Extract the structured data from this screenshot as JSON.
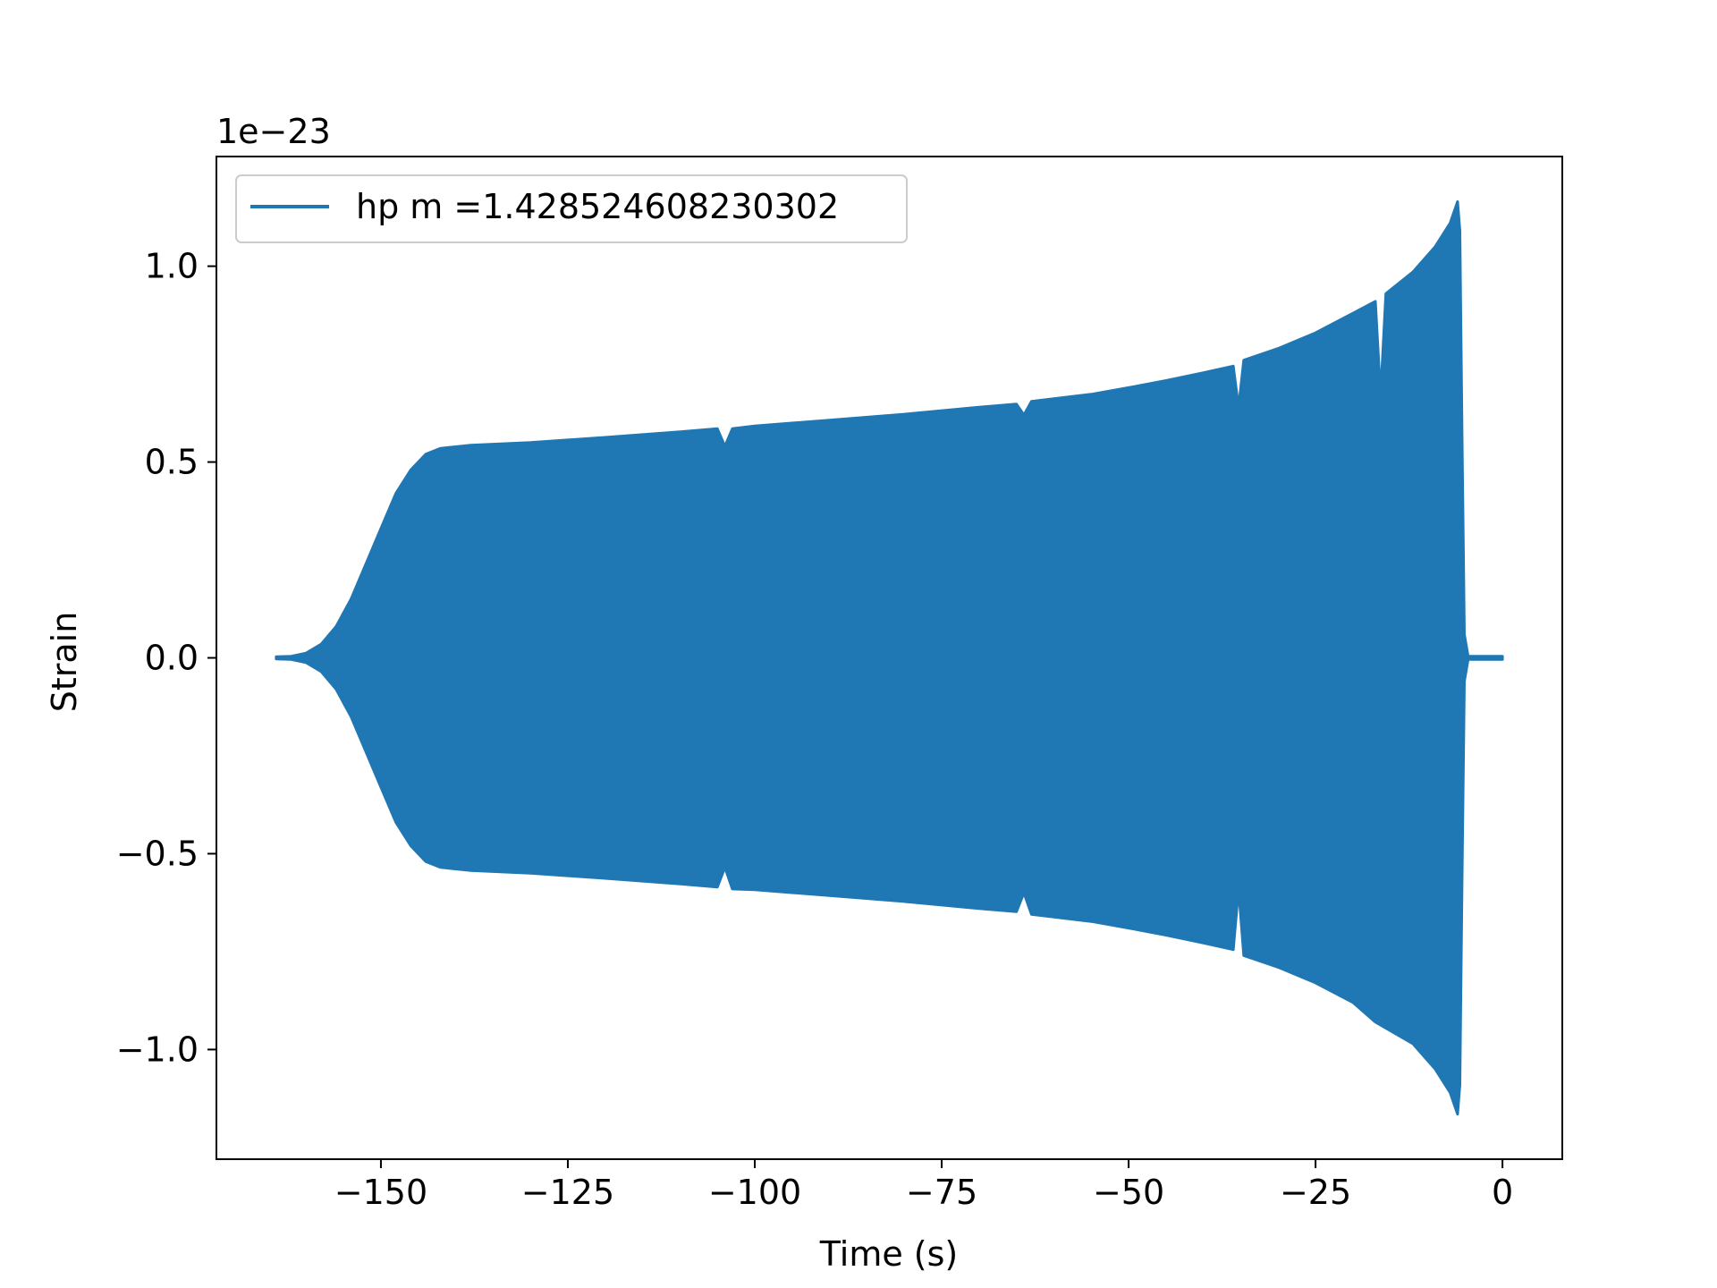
{
  "chart_data": {
    "type": "line",
    "title": "",
    "xlabel": "Time (s)",
    "ylabel": "Strain",
    "y_offset_label": "1e−23",
    "xlim": [
      -172,
      8
    ],
    "ylim": [
      -1.28,
      1.28
    ],
    "x_ticks": [
      {
        "value": -150,
        "label": "−150"
      },
      {
        "value": -125,
        "label": "−125"
      },
      {
        "value": -100,
        "label": "−100"
      },
      {
        "value": -75,
        "label": "−75"
      },
      {
        "value": -50,
        "label": "−50"
      },
      {
        "value": -25,
        "label": "−25"
      },
      {
        "value": 0,
        "label": "0"
      }
    ],
    "y_ticks": [
      {
        "value": 1.0,
        "label": "1.0"
      },
      {
        "value": 0.5,
        "label": "0.5"
      },
      {
        "value": 0.0,
        "label": "0.0"
      },
      {
        "value": -0.5,
        "label": "−0.5"
      },
      {
        "value": -1.0,
        "label": "−1.0"
      }
    ],
    "grid": false,
    "legend_position": "top-left",
    "series": [
      {
        "name": "hp m =1.428524608230302",
        "color": "#1f77b4",
        "envelope_upper": [
          [
            -164,
            0.003
          ],
          [
            -162,
            0.004
          ],
          [
            -160,
            0.012
          ],
          [
            -158,
            0.035
          ],
          [
            -156,
            0.08
          ],
          [
            -154,
            0.15
          ],
          [
            -152,
            0.24
          ],
          [
            -150,
            0.33
          ],
          [
            -148,
            0.42
          ],
          [
            -146,
            0.48
          ],
          [
            -144,
            0.52
          ],
          [
            -142,
            0.535
          ],
          [
            -138,
            0.543
          ],
          [
            -130,
            0.55
          ],
          [
            -120,
            0.563
          ],
          [
            -110,
            0.577
          ],
          [
            -105,
            0.585
          ],
          [
            -104,
            0.54
          ],
          [
            -103,
            0.585
          ],
          [
            -100,
            0.592
          ],
          [
            -90,
            0.607
          ],
          [
            -80,
            0.622
          ],
          [
            -70,
            0.64
          ],
          [
            -65,
            0.648
          ],
          [
            -64,
            0.62
          ],
          [
            -63,
            0.655
          ],
          [
            -55,
            0.673
          ],
          [
            -50,
            0.69
          ],
          [
            -45,
            0.708
          ],
          [
            -40,
            0.728
          ],
          [
            -36,
            0.745
          ],
          [
            -35.3,
            0.64
          ],
          [
            -34.6,
            0.76
          ],
          [
            -30,
            0.79
          ],
          [
            -25,
            0.83
          ],
          [
            -20,
            0.88
          ],
          [
            -17,
            0.91
          ],
          [
            -16.3,
            0.67
          ],
          [
            -15.6,
            0.93
          ],
          [
            -12,
            0.985
          ],
          [
            -9,
            1.05
          ],
          [
            -7,
            1.11
          ],
          [
            -6,
            1.165
          ],
          [
            -5.7,
            1.09
          ],
          [
            -5.4,
            0.55
          ],
          [
            -5.1,
            0.06
          ],
          [
            -4.6,
            0.004
          ],
          [
            0,
            0.004
          ]
        ],
        "envelope_lower": [
          [
            -164,
            -0.003
          ],
          [
            -162,
            -0.004
          ],
          [
            -160,
            -0.012
          ],
          [
            -158,
            -0.035
          ],
          [
            -156,
            -0.08
          ],
          [
            -154,
            -0.15
          ],
          [
            -152,
            -0.24
          ],
          [
            -150,
            -0.33
          ],
          [
            -148,
            -0.42
          ],
          [
            -146,
            -0.48
          ],
          [
            -144,
            -0.52
          ],
          [
            -142,
            -0.535
          ],
          [
            -138,
            -0.543
          ],
          [
            -130,
            -0.55
          ],
          [
            -120,
            -0.563
          ],
          [
            -110,
            -0.577
          ],
          [
            -105,
            -0.585
          ],
          [
            -104,
            -0.535
          ],
          [
            -103,
            -0.59
          ],
          [
            -100,
            -0.592
          ],
          [
            -90,
            -0.607
          ],
          [
            -80,
            -0.622
          ],
          [
            -70,
            -0.64
          ],
          [
            -65,
            -0.648
          ],
          [
            -64,
            -0.6
          ],
          [
            -63,
            -0.655
          ],
          [
            -55,
            -0.673
          ],
          [
            -50,
            -0.69
          ],
          [
            -45,
            -0.708
          ],
          [
            -40,
            -0.728
          ],
          [
            -36,
            -0.745
          ],
          [
            -35.3,
            -0.59
          ],
          [
            -34.6,
            -0.76
          ],
          [
            -30,
            -0.79
          ],
          [
            -25,
            -0.83
          ],
          [
            -20,
            -0.88
          ],
          [
            -17,
            -0.93
          ],
          [
            -12,
            -0.985
          ],
          [
            -9,
            -1.05
          ],
          [
            -7,
            -1.11
          ],
          [
            -6,
            -1.165
          ],
          [
            -5.7,
            -1.09
          ],
          [
            -5.4,
            -0.55
          ],
          [
            -5.1,
            -0.06
          ],
          [
            -4.6,
            -0.004
          ],
          [
            0,
            -0.004
          ]
        ]
      }
    ]
  }
}
